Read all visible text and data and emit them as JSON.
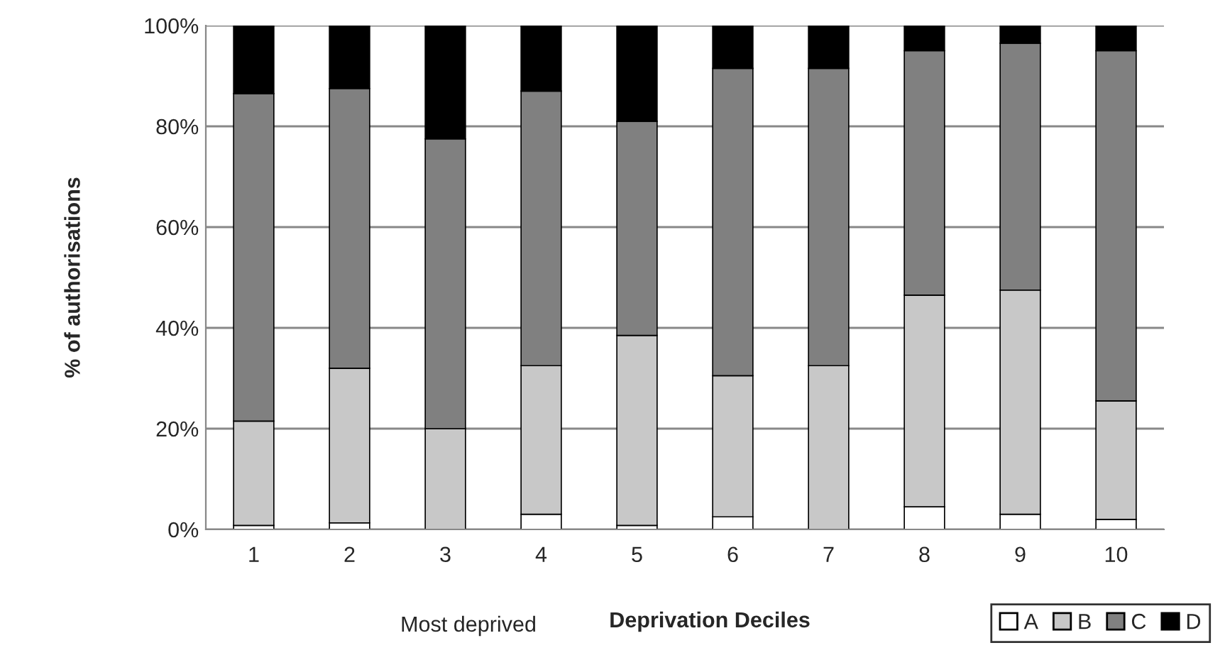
{
  "chart_data": {
    "type": "bar",
    "stacked": true,
    "xlabel": "Deprivation Deciles",
    "ylabel": "% of authorisations",
    "categories": [
      "1",
      "2",
      "3",
      "4",
      "5",
      "6",
      "7",
      "8",
      "9",
      "10"
    ],
    "series": [
      {
        "name": "A",
        "color": "#ffffff",
        "values": [
          0.8,
          1.3,
          0,
          3,
          0.8,
          2.5,
          0,
          4.5,
          3,
          2
        ]
      },
      {
        "name": "B",
        "color": "#c8c8c8",
        "values": [
          20.7,
          30.7,
          20,
          29.5,
          37.7,
          28,
          32.5,
          42,
          44.5,
          23.5
        ]
      },
      {
        "name": "C",
        "color": "#808080",
        "values": [
          65,
          55.5,
          57.5,
          54.5,
          42.5,
          61,
          59,
          48.5,
          49,
          69.5
        ]
      },
      {
        "name": "D",
        "color": "#000000",
        "values": [
          13.5,
          12.5,
          22.5,
          13,
          19,
          8.5,
          8.5,
          5,
          3.5,
          5
        ]
      }
    ],
    "ylim": [
      0,
      100
    ],
    "yticks": [
      {
        "value": 0,
        "label": "0%"
      },
      {
        "value": 20,
        "label": "20%"
      },
      {
        "value": 40,
        "label": "40%"
      },
      {
        "value": 60,
        "label": "60%"
      },
      {
        "value": 80,
        "label": "80%"
      },
      {
        "value": 100,
        "label": "100%"
      }
    ],
    "grid": "y",
    "legend": "bottom right",
    "annotations": [
      "Most deprived"
    ]
  }
}
